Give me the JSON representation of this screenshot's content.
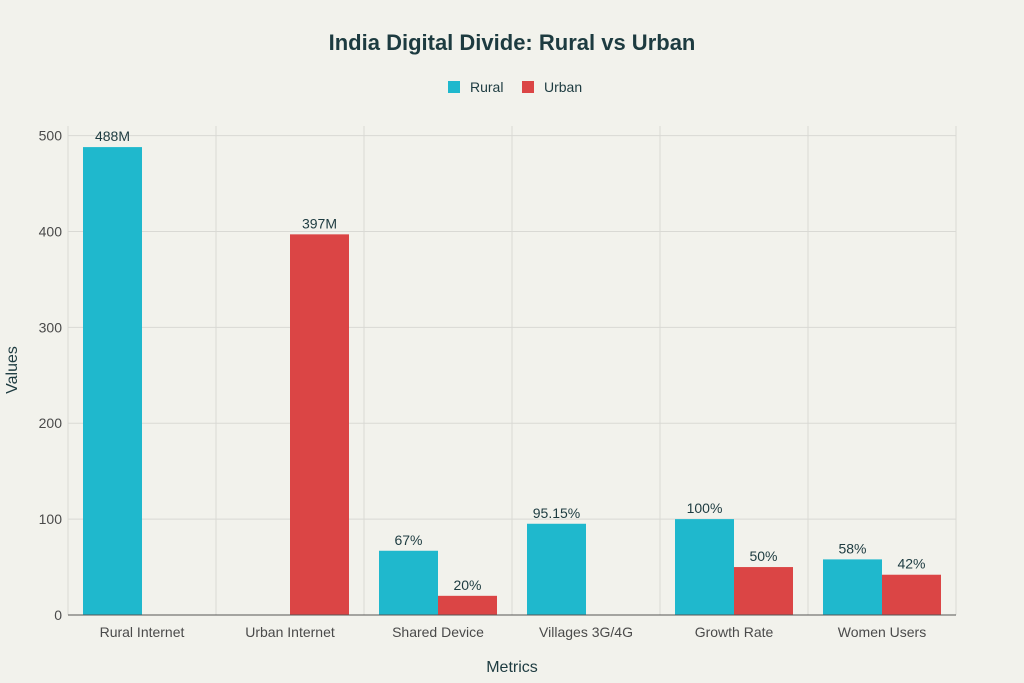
{
  "chart_data": {
    "type": "bar",
    "title": "India Digital Divide: Rural vs Urban",
    "xlabel": "Metrics",
    "ylabel": "Values",
    "ylim": [
      0,
      510
    ],
    "yticks": [
      0,
      100,
      200,
      300,
      400,
      500
    ],
    "grid": true,
    "legend_position": "top-center",
    "categories": [
      "Rural Internet",
      "Urban Internet",
      "Shared Device",
      "Villages 3G/4G",
      "Growth Rate",
      "Women Users"
    ],
    "series": [
      {
        "name": "Rural",
        "color": "#1fb8cd",
        "values": [
          488,
          null,
          67,
          95.15,
          100,
          58
        ],
        "labels": [
          "488M",
          "",
          "67%",
          "95.15%",
          "100%",
          "58%"
        ]
      },
      {
        "name": "Urban",
        "color": "#db4545",
        "values": [
          null,
          397,
          20,
          null,
          50,
          42
        ],
        "labels": [
          "",
          "397M",
          "20%",
          "",
          "50%",
          "42%"
        ]
      }
    ]
  }
}
